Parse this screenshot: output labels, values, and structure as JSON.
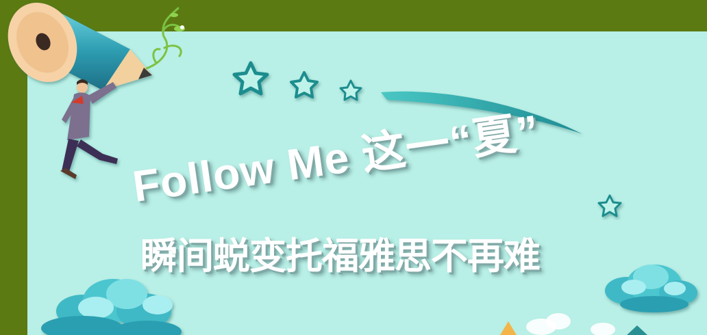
{
  "headline": {
    "line1": "Follow Me 这一“夏”",
    "line2": "瞬间蜕变托福雅思不再难"
  },
  "colors": {
    "frame": "#5b7a12",
    "panel": "#b8efe6",
    "star": "#2a9a97",
    "cloud": "#4cc6cf",
    "text": "#ffffff"
  },
  "icons": [
    "pencil-icon",
    "vine-icon",
    "flying-man-icon",
    "star-icon",
    "cloud-icon",
    "swoosh-icon"
  ]
}
